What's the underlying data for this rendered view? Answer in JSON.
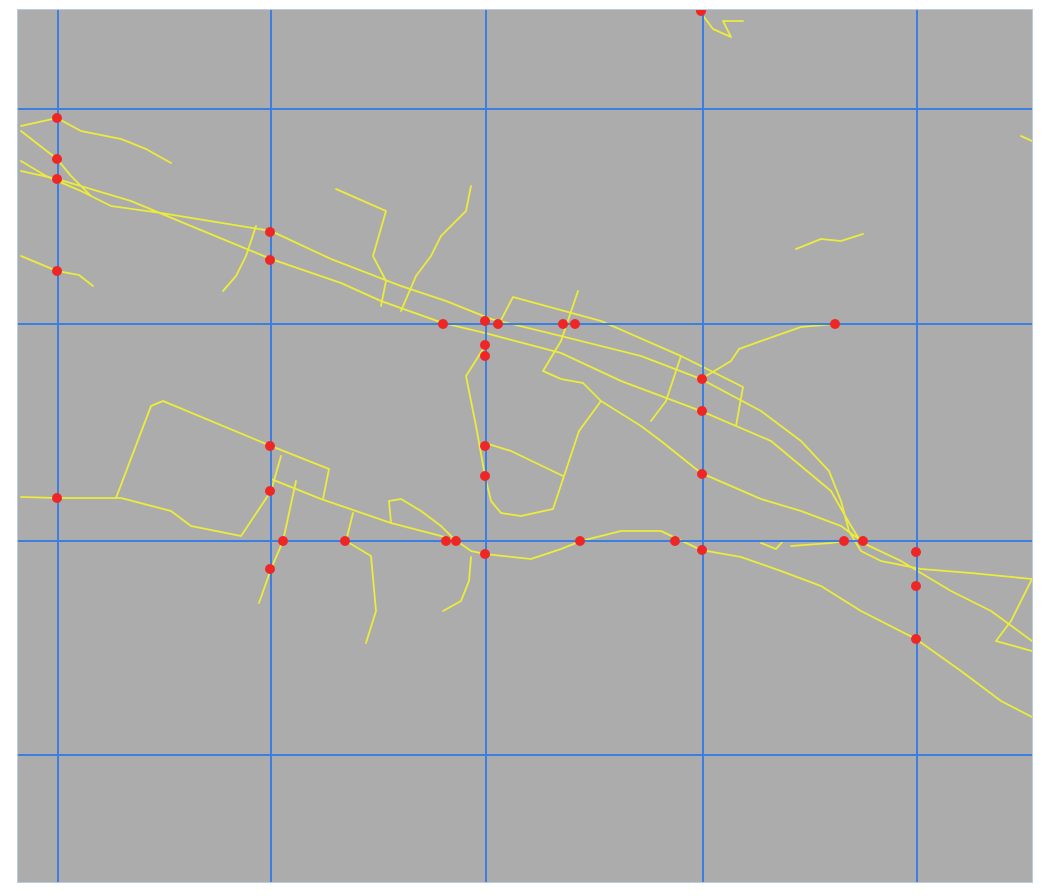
{
  "map": {
    "colors": {
      "background": "#acacac",
      "grid": "#3d7ee3",
      "road": "#ecec3c",
      "intersection": "#ee2626"
    },
    "icons": {
      "intersection": "intersection-dot-icon"
    }
  }
}
